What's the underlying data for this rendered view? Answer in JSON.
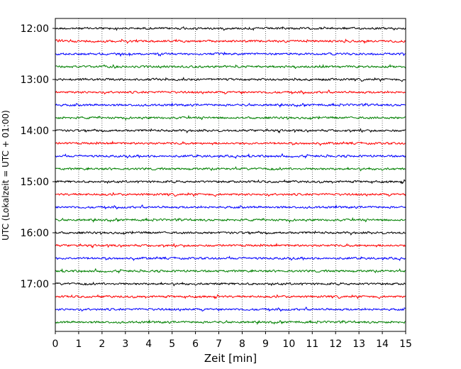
{
  "chart_data": {
    "type": "line",
    "title": "",
    "xlabel": "Zeit  [min]",
    "ylabel": "UTC (Lokalzeit = UTC + 01:00)",
    "xlim": [
      0,
      15
    ],
    "xticks": [
      "0",
      "1",
      "2",
      "3",
      "4",
      "5",
      "6",
      "7",
      "8",
      "9",
      "10",
      "11",
      "12",
      "13",
      "14",
      "15"
    ],
    "yticks": [
      "12:00",
      "13:00",
      "14:00",
      "15:00",
      "16:00",
      "17:00"
    ],
    "row_start": "12:00",
    "row_interval_min": 15,
    "rows": 24,
    "grid": "vertical dotted",
    "colors": [
      "#000000",
      "#ff0000",
      "#0000ff",
      "#008000"
    ]
  }
}
